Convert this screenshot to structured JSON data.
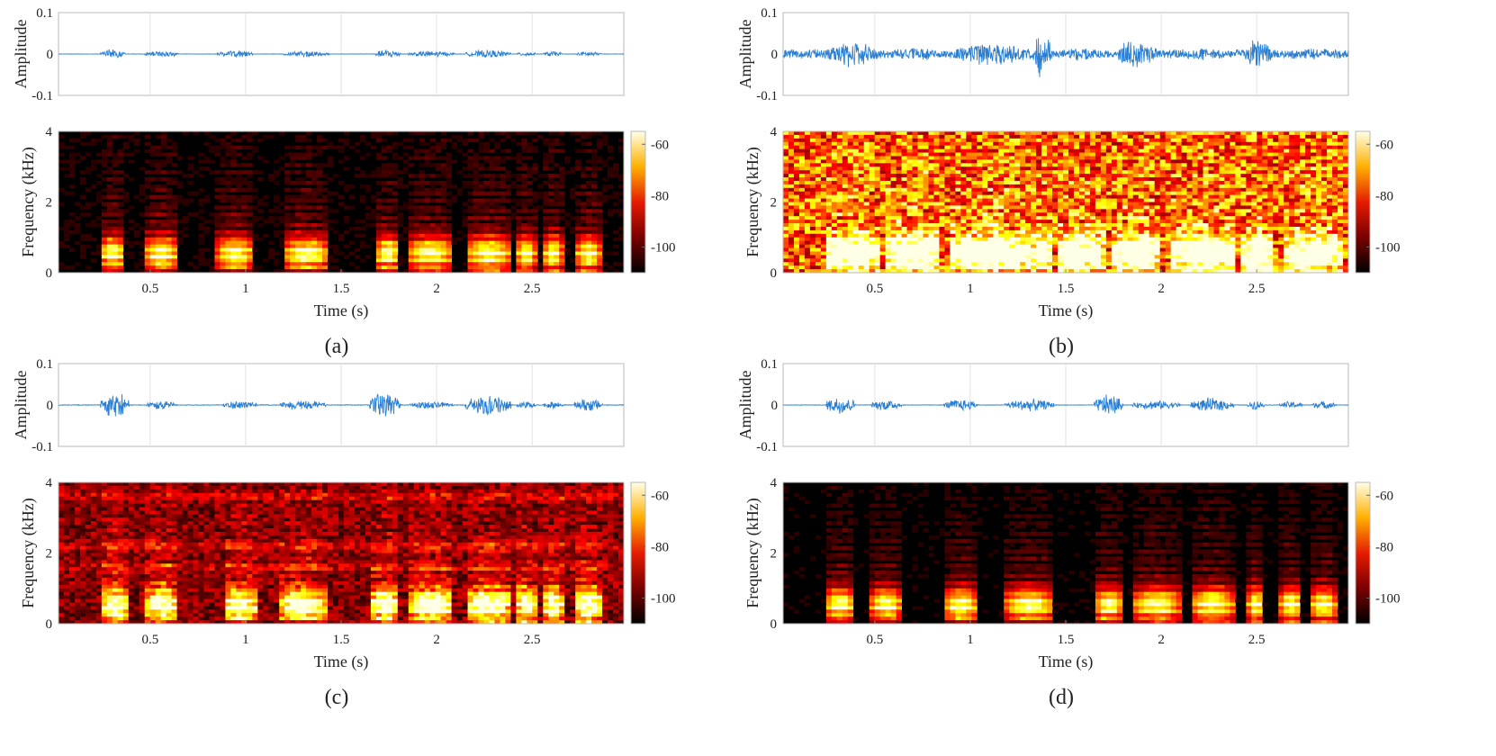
{
  "figure": {
    "colormap": "hot",
    "waveform_color": "#2a7fd2",
    "panels": [
      {
        "label": "(a)",
        "waveform": {
          "ylabel": "Amplitude",
          "ylim": [
            -0.1,
            0.1
          ],
          "yticks": [
            "0.1",
            "0",
            "-0.1"
          ],
          "xgrid": [
            0.5,
            1,
            1.5,
            2,
            2.5
          ],
          "peak_envelope": 0.012,
          "noise_floor": 0.0005,
          "segments": [
            [
              0.24,
              0.37,
              0.012
            ],
            [
              0.47,
              0.65,
              0.008
            ],
            [
              0.85,
              1.04,
              0.009
            ],
            [
              1.2,
              1.44,
              0.008
            ],
            [
              1.68,
              1.81,
              0.012
            ],
            [
              1.85,
              2.09,
              0.008
            ],
            [
              2.15,
              2.39,
              0.01
            ],
            [
              2.42,
              2.52,
              0.006
            ],
            [
              2.56,
              2.66,
              0.007
            ],
            [
              2.73,
              2.86,
              0.007
            ]
          ]
        },
        "spectrogram": {
          "ylabel": "Frequency (kHz)",
          "xlabel": "Time (s)",
          "ylim": [
            0,
            4
          ],
          "yticks": [
            "0",
            "2",
            "4"
          ],
          "xlim": [
            0.02,
            2.98
          ],
          "xticks": [
            "0.5",
            "1",
            "1.5",
            "2",
            "2.5"
          ],
          "colorbar": {
            "ticks": [
              "-60",
              "-80",
              "-100"
            ],
            "range": [
              -110,
              -55
            ]
          },
          "background_level": 0.04,
          "noise_level": 0.05,
          "band_emphasis": []
        }
      },
      {
        "label": "(b)",
        "waveform": {
          "ylabel": "Amplitude",
          "ylim": [
            -0.1,
            0.1
          ],
          "yticks": [
            "0.1",
            "0",
            "-0.1"
          ],
          "xgrid": [
            0.5,
            1,
            1.5,
            2,
            2.5
          ],
          "peak_envelope": 0.025,
          "noise_floor": 0.012,
          "segments": [
            [
              0.24,
              0.52,
              0.035
            ],
            [
              0.55,
              0.85,
              0.018
            ],
            [
              0.88,
              1.33,
              0.03
            ],
            [
              1.33,
              1.42,
              0.065
            ],
            [
              1.45,
              1.7,
              0.018
            ],
            [
              1.75,
              1.98,
              0.035
            ],
            [
              2.05,
              2.4,
              0.015
            ],
            [
              2.42,
              2.58,
              0.038
            ],
            [
              2.65,
              2.95,
              0.015
            ]
          ]
        },
        "spectrogram": {
          "ylabel": "Frequency (kHz)",
          "xlabel": "Time (s)",
          "ylim": [
            0,
            4
          ],
          "yticks": [
            "0",
            "2",
            "4"
          ],
          "xlim": [
            0.02,
            2.98
          ],
          "xticks": [
            "0.5",
            "1",
            "1.5",
            "2",
            "2.5"
          ],
          "colorbar": {
            "ticks": [
              "-60",
              "-80",
              "-100"
            ],
            "range": [
              -110,
              -55
            ]
          },
          "background_level": 0.55,
          "noise_level": 0.3,
          "band_emphasis": []
        }
      },
      {
        "label": "(c)",
        "waveform": {
          "ylabel": "Amplitude",
          "ylim": [
            -0.1,
            0.1
          ],
          "yticks": [
            "0.1",
            "0",
            "-0.1"
          ],
          "xgrid": [
            0.5,
            1,
            1.5,
            2,
            2.5
          ],
          "peak_envelope": 0.03,
          "noise_floor": 0.001,
          "segments": [
            [
              0.24,
              0.39,
              0.035
            ],
            [
              0.48,
              0.64,
              0.012
            ],
            [
              0.88,
              1.06,
              0.012
            ],
            [
              1.18,
              1.42,
              0.014
            ],
            [
              1.65,
              1.81,
              0.038
            ],
            [
              1.86,
              2.09,
              0.01
            ],
            [
              2.15,
              2.39,
              0.03
            ],
            [
              2.42,
              2.52,
              0.01
            ],
            [
              2.56,
              2.66,
              0.01
            ],
            [
              2.72,
              2.87,
              0.018
            ]
          ]
        },
        "spectrogram": {
          "ylabel": "Frequency (kHz)",
          "xlabel": "Time (s)",
          "ylim": [
            0,
            4
          ],
          "yticks": [
            "0",
            "2",
            "4"
          ],
          "xlim": [
            0.02,
            2.98
          ],
          "xticks": [
            "0.5",
            "1",
            "1.5",
            "2",
            "2.5"
          ],
          "colorbar": {
            "ticks": [
              "-60",
              "-80",
              "-100"
            ],
            "range": [
              -110,
              -55
            ]
          },
          "background_level": 0.22,
          "noise_level": 0.15,
          "band_emphasis": [
            2.2,
            1.6,
            3.6
          ]
        }
      },
      {
        "label": "(d)",
        "waveform": {
          "ylabel": "Amplitude",
          "ylim": [
            -0.1,
            0.1
          ],
          "yticks": [
            "0.1",
            "0",
            "-0.1"
          ],
          "xgrid": [
            0.5,
            1,
            1.5,
            2,
            2.5
          ],
          "peak_envelope": 0.02,
          "noise_floor": 0.0007,
          "segments": [
            [
              0.24,
              0.4,
              0.025
            ],
            [
              0.48,
              0.64,
              0.015
            ],
            [
              0.86,
              1.04,
              0.015
            ],
            [
              1.18,
              1.44,
              0.016
            ],
            [
              1.65,
              1.8,
              0.028
            ],
            [
              1.85,
              2.1,
              0.012
            ],
            [
              2.15,
              2.38,
              0.018
            ],
            [
              2.45,
              2.54,
              0.012
            ],
            [
              2.62,
              2.74,
              0.01
            ],
            [
              2.78,
              2.92,
              0.01
            ]
          ]
        },
        "spectrogram": {
          "ylabel": "Frequency (kHz)",
          "xlabel": "Time (s)",
          "ylim": [
            0,
            4
          ],
          "yticks": [
            "0",
            "2",
            "4"
          ],
          "xlim": [
            0.02,
            2.98
          ],
          "xticks": [
            "0.5",
            "1",
            "1.5",
            "2",
            "2.5"
          ],
          "colorbar": {
            "ticks": [
              "-60",
              "-80",
              "-100"
            ],
            "range": [
              -110,
              -55
            ]
          },
          "background_level": 0.03,
          "noise_level": 0.04,
          "band_emphasis": []
        }
      }
    ]
  },
  "chart_data": [
    {
      "type": "line",
      "title": "(a)",
      "ylabel": "Amplitude",
      "ylim": [
        -0.1,
        0.1
      ],
      "xlim": [
        0,
        3
      ],
      "series": [
        {
          "values": "speech waveform, peaks approx. ±0.012"
        }
      ]
    },
    {
      "type": "heatmap",
      "title": "(a)",
      "xlabel": "Time (s)",
      "ylabel": "Frequency (kHz)",
      "xlim": [
        0,
        3
      ],
      "ylim": [
        0,
        4
      ],
      "colorbar_ticks": [
        -60,
        -80,
        -100
      ]
    },
    {
      "type": "line",
      "title": "(b)",
      "ylabel": "Amplitude",
      "ylim": [
        -0.1,
        0.1
      ],
      "xlim": [
        0,
        3
      ],
      "series": [
        {
          "values": "noisy speech waveform, peaks approx. ±0.065"
        }
      ]
    },
    {
      "type": "heatmap",
      "title": "(b)",
      "xlabel": "Time (s)",
      "ylabel": "Frequency (kHz)",
      "xlim": [
        0,
        3
      ],
      "ylim": [
        0,
        4
      ],
      "colorbar_ticks": [
        -60,
        -80,
        -100
      ]
    },
    {
      "type": "line",
      "title": "(c)",
      "ylabel": "Amplitude",
      "ylim": [
        -0.1,
        0.1
      ],
      "xlim": [
        0,
        3
      ],
      "series": [
        {
          "values": "enhanced speech waveform, peaks approx. ±0.038"
        }
      ]
    },
    {
      "type": "heatmap",
      "title": "(c)",
      "xlabel": "Time (s)",
      "ylabel": "Frequency (kHz)",
      "xlim": [
        0,
        3
      ],
      "ylim": [
        0,
        4
      ],
      "colorbar_ticks": [
        -60,
        -80,
        -100
      ]
    },
    {
      "type": "line",
      "title": "(d)",
      "ylabel": "Amplitude",
      "ylim": [
        -0.1,
        0.1
      ],
      "xlim": [
        0,
        3
      ],
      "series": [
        {
          "values": "enhanced speech waveform, peaks approx. ±0.028"
        }
      ]
    },
    {
      "type": "heatmap",
      "title": "(d)",
      "xlabel": "Time (s)",
      "ylabel": "Frequency (kHz)",
      "xlim": [
        0,
        3
      ],
      "ylim": [
        0,
        4
      ],
      "colorbar_ticks": [
        -60,
        -80,
        -100
      ]
    }
  ]
}
